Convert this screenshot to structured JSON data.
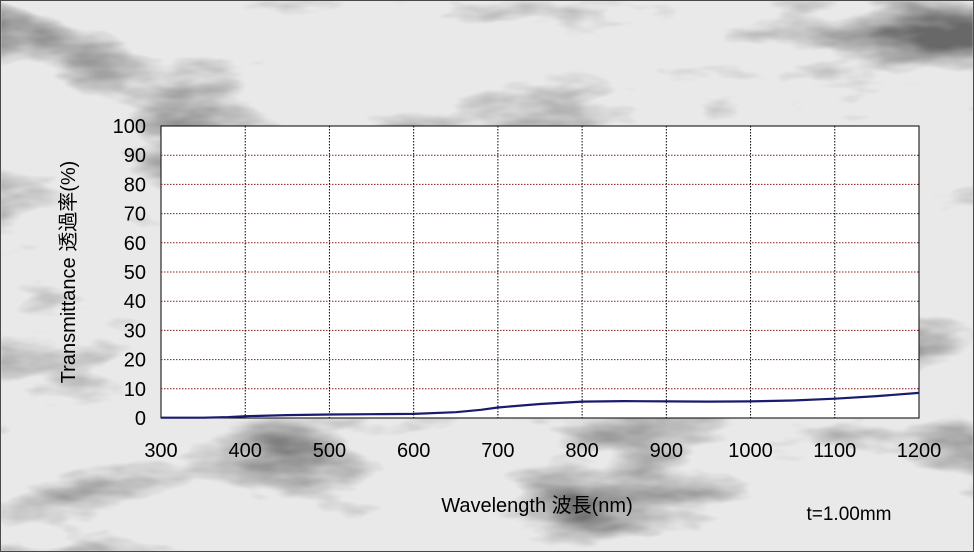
{
  "chart_data": {
    "type": "line",
    "title": "",
    "xlabel": "Wavelength 波長(nm)",
    "ylabel": "Transmittance 透過率(%)",
    "xlim": [
      300,
      1200
    ],
    "ylim": [
      0,
      100
    ],
    "x_ticks": [
      "300",
      "400",
      "500",
      "600",
      "700",
      "800",
      "900",
      "1000",
      "1100",
      "1200"
    ],
    "y_ticks": [
      "0",
      "10",
      "20",
      "30",
      "40",
      "50",
      "60",
      "70",
      "80",
      "90",
      "100"
    ],
    "grid": true,
    "legend": "none",
    "annotation": "t=1.00mm",
    "line_color": "#1a1a6e",
    "grid_color_horizontal": "#8b1a1a",
    "grid_color_vertical": "#000000",
    "series": [
      {
        "x": [
          300,
          350,
          380,
          400,
          450,
          500,
          550,
          600,
          650,
          680,
          700,
          750,
          800,
          850,
          900,
          950,
          1000,
          1050,
          1100,
          1150,
          1200
        ],
        "y": [
          0.1,
          0.1,
          0.3,
          0.6,
          1.0,
          1.2,
          1.3,
          1.4,
          2.0,
          2.8,
          3.6,
          4.8,
          5.6,
          5.8,
          5.7,
          5.6,
          5.7,
          6.0,
          6.6,
          7.5,
          8.6
        ]
      }
    ]
  }
}
